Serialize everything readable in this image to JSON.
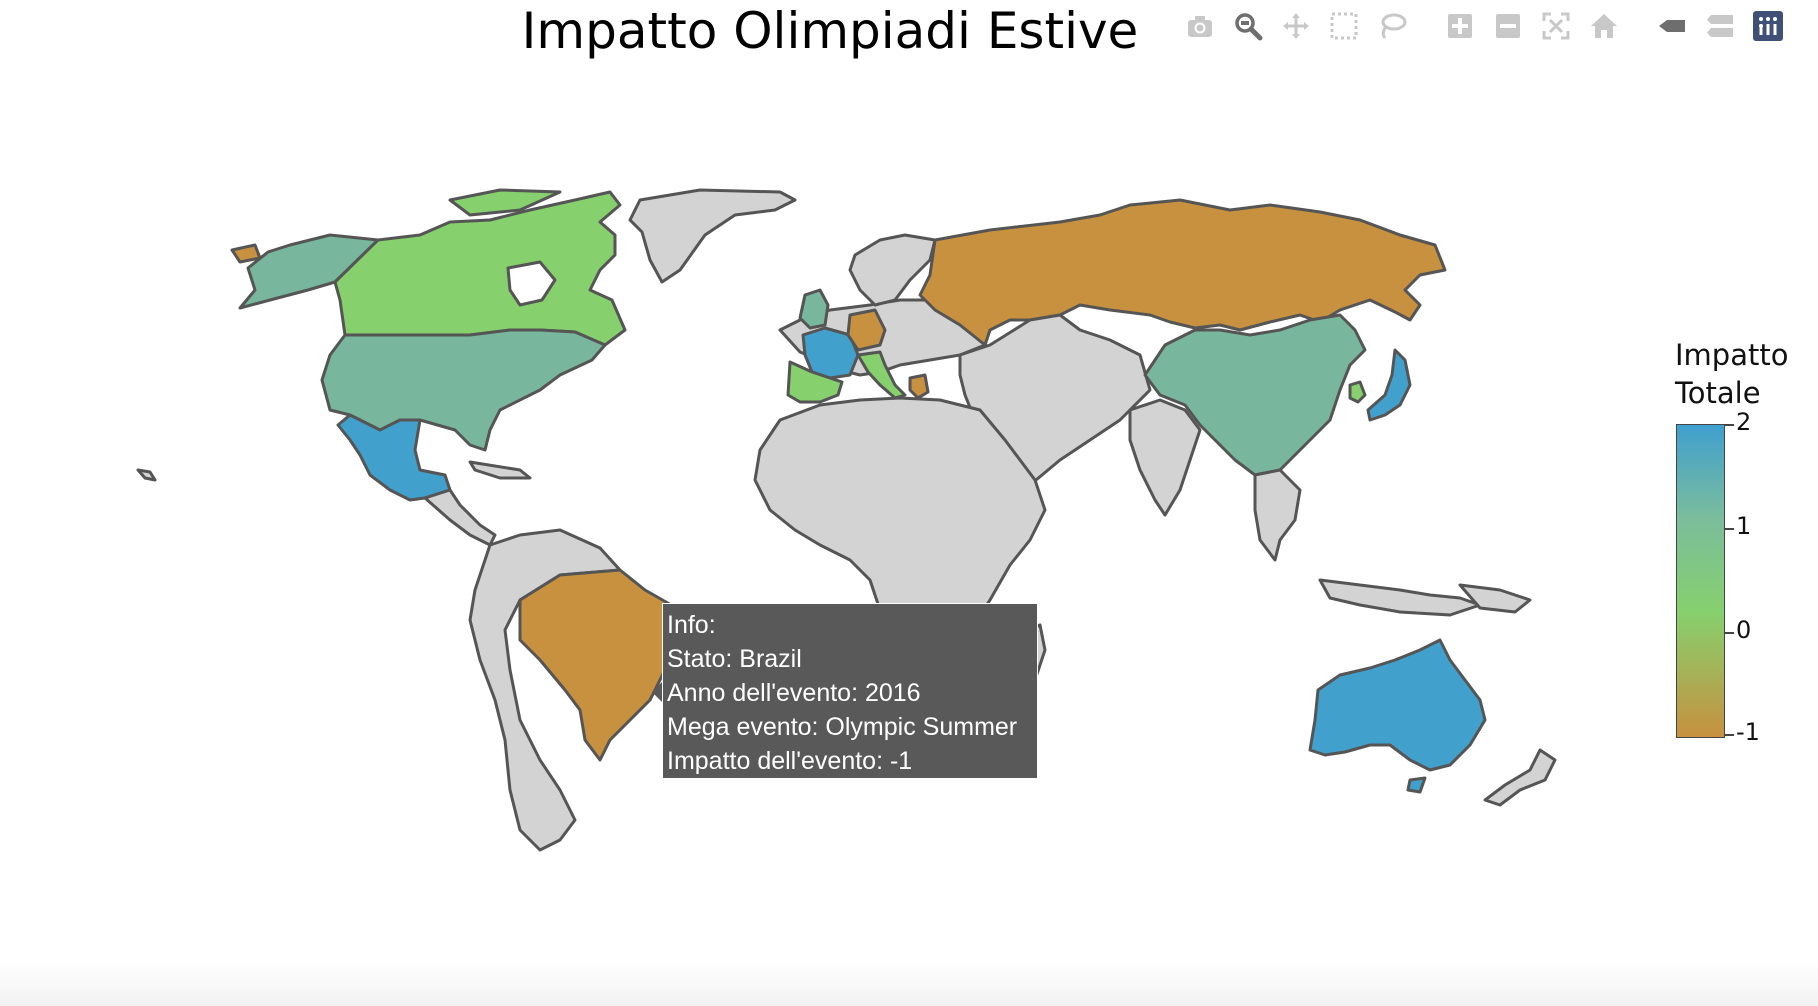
{
  "title": "Impatto Olimpiadi Estive",
  "modebar": [
    {
      "name": "camera-icon"
    },
    {
      "name": "zoom-icon"
    },
    {
      "name": "pan-icon"
    },
    {
      "name": "box-select-icon"
    },
    {
      "name": "lasso-select-icon"
    },
    {
      "name": "zoom-in-icon"
    },
    {
      "name": "zoom-out-icon"
    },
    {
      "name": "autoscale-icon"
    },
    {
      "name": "reset-axes-icon"
    },
    {
      "name": "hover-closest-icon"
    },
    {
      "name": "hover-compare-icon"
    },
    {
      "name": "plotly-logo-icon"
    }
  ],
  "colorbar": {
    "title_line1": "Impatto",
    "title_line2": "Totale",
    "ticks": [
      "2",
      "1",
      "0",
      "-1"
    ],
    "range": [
      -1,
      2
    ],
    "colors": {
      "max": "#3f9fcf",
      "mid_high": "#7bbd9c",
      "mid": "#86d06e",
      "min": "#c7913f"
    }
  },
  "tooltip": {
    "line1": "Info:",
    "line2": "Stato: Brazil",
    "line3": "Anno dell'evento: 2016",
    "line4": "Mega evento: Olympic Summer",
    "line5": "Impatto dell'evento: -1"
  },
  "countries": [
    {
      "name": "Canada",
      "value": 0,
      "color": "#86d06e"
    },
    {
      "name": "United States",
      "value": 1,
      "color": "#78b79d"
    },
    {
      "name": "Mexico",
      "value": 2,
      "color": "#42a0cd"
    },
    {
      "name": "Brazil",
      "value": -1,
      "color": "#c7913f"
    },
    {
      "name": "Russia",
      "value": -1,
      "color": "#c7913f"
    },
    {
      "name": "China",
      "value": 1,
      "color": "#78b79d"
    },
    {
      "name": "Japan",
      "value": 2,
      "color": "#42a0cd"
    },
    {
      "name": "Australia",
      "value": 2,
      "color": "#42a0cd"
    },
    {
      "name": "France",
      "value": 2,
      "color": "#42a0cd"
    },
    {
      "name": "Spain",
      "value": 0,
      "color": "#86d06e"
    },
    {
      "name": "United Kingdom",
      "value": 1,
      "color": "#78b79d"
    },
    {
      "name": "Germany",
      "value": -1,
      "color": "#c7913f"
    },
    {
      "name": "Italy",
      "value": 0,
      "color": "#86d06e"
    },
    {
      "name": "Greece",
      "value": -1,
      "color": "#c7913f"
    },
    {
      "name": "South Korea",
      "value": 0,
      "color": "#86d06e"
    },
    {
      "name": "Netherlands",
      "value": 1,
      "color": "#78b79d"
    }
  ],
  "other_land_color": "#d3d3d3"
}
